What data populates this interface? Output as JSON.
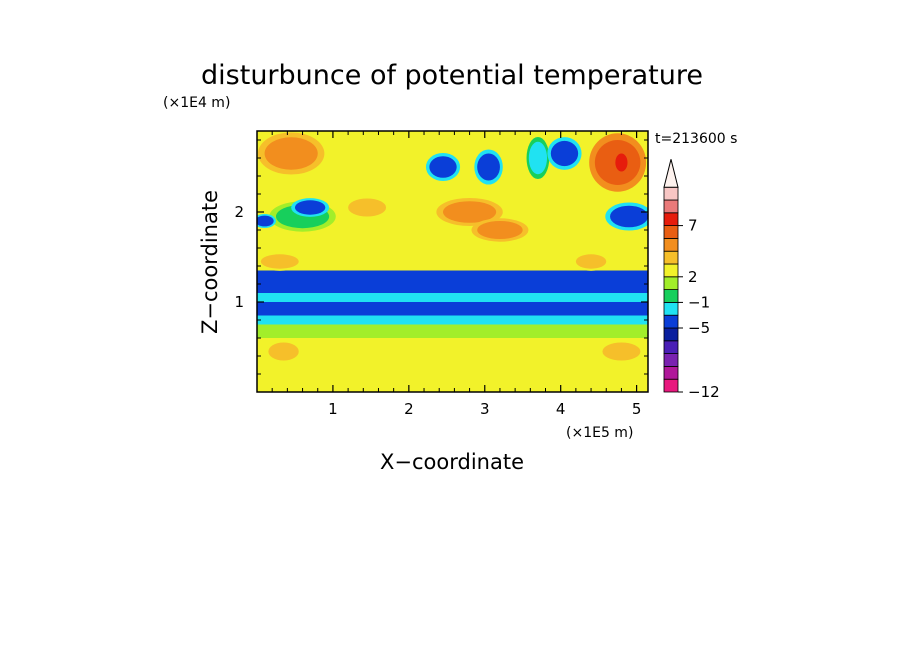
{
  "chart_data": {
    "type": "heatmap",
    "title": "disturbunce of potential temperature",
    "xlabel": "X−coordinate",
    "ylabel": "Z−coordinate",
    "x_scale_label": "(×1E5 m)",
    "y_scale_label": "(×1E4 m)",
    "time_label": "t=213600 s",
    "xlim": [
      0,
      5.15
    ],
    "ylim": [
      0,
      2.9
    ],
    "x_ticks": [
      {
        "value": 1,
        "label": "1"
      },
      {
        "value": 2,
        "label": "2"
      },
      {
        "value": 3,
        "label": "3"
      },
      {
        "value": 4,
        "label": "4"
      },
      {
        "value": 5,
        "label": "5"
      }
    ],
    "y_ticks": [
      {
        "value": 1,
        "label": "1"
      },
      {
        "value": 2,
        "label": "2"
      }
    ],
    "colorbar": {
      "levels": [
        {
          "color": "#e8187e"
        },
        {
          "color": "#b0189a"
        },
        {
          "color": "#7a22b0"
        },
        {
          "color": "#4a1fb6"
        },
        {
          "color": "#0a1f9e"
        },
        {
          "color": "#0a3ed8"
        },
        {
          "color": "#20e2f2"
        },
        {
          "color": "#17cf5c"
        },
        {
          "color": "#a2ee2a"
        },
        {
          "color": "#f2f22a"
        },
        {
          "color": "#f6bf2a"
        },
        {
          "color": "#f28e1e"
        },
        {
          "color": "#e95e12"
        },
        {
          "color": "#e61c0c"
        },
        {
          "color": "#ea7a7a"
        },
        {
          "color": "#f7c6c4"
        }
      ],
      "extend": "max",
      "tick_labels": [
        {
          "label": "−12",
          "level_edge": 0
        },
        {
          "label": "−5",
          "level_edge": 5
        },
        {
          "label": "−1",
          "level_edge": 7
        },
        {
          "label": "2",
          "level_edge": 9
        },
        {
          "label": "7",
          "level_edge": 13
        }
      ]
    },
    "bands": [
      {
        "z_range": [
          0.0,
          0.35
        ],
        "level": 9
      },
      {
        "z_range": [
          0.35,
          0.6
        ],
        "level": 9
      },
      {
        "z_range": [
          0.6,
          0.75
        ],
        "level": 8
      },
      {
        "z_range": [
          0.75,
          0.85
        ],
        "level": 6
      },
      {
        "z_range": [
          0.85,
          1.0
        ],
        "level": 5
      },
      {
        "z_range": [
          1.0,
          1.1
        ],
        "level": 6
      },
      {
        "z_range": [
          1.1,
          1.35
        ],
        "level": 5
      },
      {
        "z_range": [
          1.35,
          1.55
        ],
        "level": 9
      },
      {
        "z_range": [
          1.55,
          2.9
        ],
        "level": 9
      }
    ],
    "features": [
      {
        "x": 0.45,
        "z": 2.65,
        "rx": 0.35,
        "rz": 0.18,
        "level": 11
      },
      {
        "x": 0.6,
        "z": 1.95,
        "rx": 0.35,
        "rz": 0.13,
        "level": 7
      },
      {
        "x": 0.7,
        "z": 2.05,
        "rx": 0.2,
        "rz": 0.08,
        "level": 5
      },
      {
        "x": 0.1,
        "z": 1.9,
        "rx": 0.12,
        "rz": 0.06,
        "level": 5
      },
      {
        "x": 1.45,
        "z": 2.05,
        "rx": 0.25,
        "rz": 0.1,
        "level": 10
      },
      {
        "x": 2.45,
        "z": 2.5,
        "rx": 0.18,
        "rz": 0.12,
        "level": 5
      },
      {
        "x": 3.05,
        "z": 2.5,
        "rx": 0.15,
        "rz": 0.15,
        "level": 5
      },
      {
        "x": 3.7,
        "z": 2.6,
        "rx": 0.12,
        "rz": 0.18,
        "level": 6
      },
      {
        "x": 4.05,
        "z": 2.65,
        "rx": 0.18,
        "rz": 0.14,
        "level": 5
      },
      {
        "x": 4.75,
        "z": 2.55,
        "rx": 0.3,
        "rz": 0.25,
        "level": 12
      },
      {
        "x": 4.8,
        "z": 2.55,
        "rx": 0.08,
        "rz": 0.1,
        "level": 13
      },
      {
        "x": 4.9,
        "z": 1.95,
        "rx": 0.25,
        "rz": 0.12,
        "level": 5
      },
      {
        "x": 2.8,
        "z": 2.0,
        "rx": 0.35,
        "rz": 0.12,
        "level": 11
      },
      {
        "x": 3.2,
        "z": 1.8,
        "rx": 0.3,
        "rz": 0.1,
        "level": 11
      },
      {
        "x": 0.3,
        "z": 1.45,
        "rx": 0.25,
        "rz": 0.08,
        "level": 10
      },
      {
        "x": 4.4,
        "z": 1.45,
        "rx": 0.2,
        "rz": 0.08,
        "level": 10
      },
      {
        "x": 0.35,
        "z": 0.45,
        "rx": 0.2,
        "rz": 0.1,
        "level": 10
      },
      {
        "x": 4.8,
        "z": 0.45,
        "rx": 0.25,
        "rz": 0.1,
        "level": 10
      }
    ]
  }
}
